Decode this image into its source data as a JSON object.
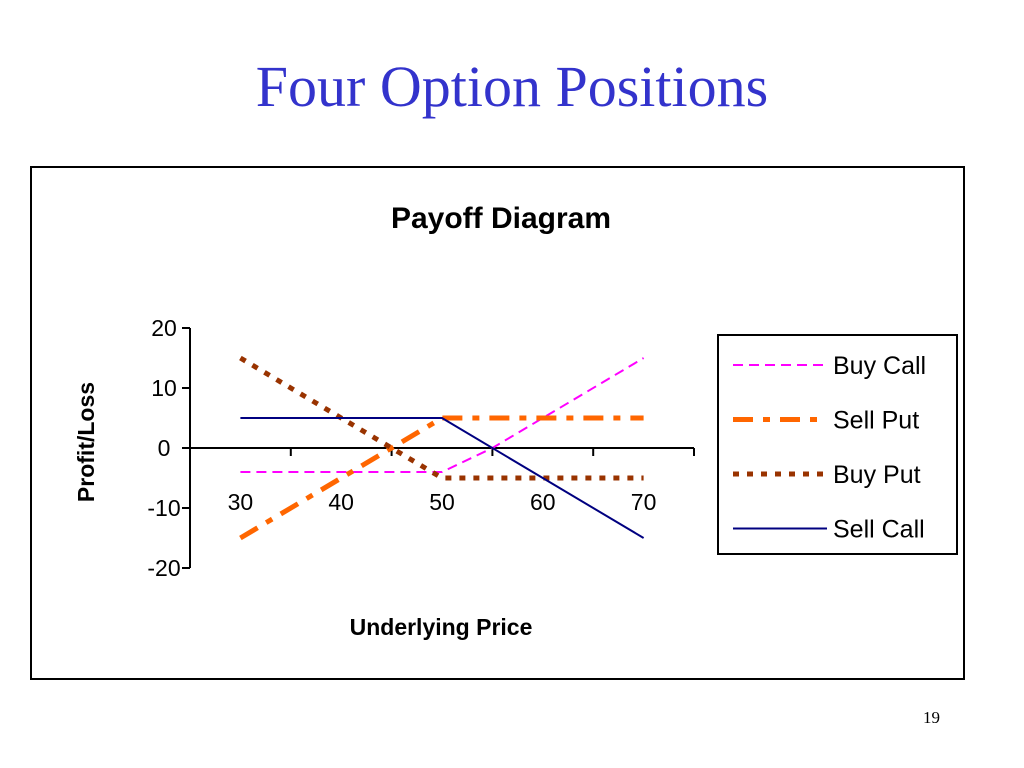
{
  "slide": {
    "title": "Four Option Positions",
    "page_number": "19"
  },
  "chart_data": {
    "type": "line",
    "title": "Payoff Diagram",
    "xlabel": "Underlying Price",
    "ylabel": "Profit/Loss",
    "x_ticks": [
      30,
      40,
      50,
      60,
      70
    ],
    "y_ticks": [
      20,
      10,
      0,
      -10,
      -20
    ],
    "xlim": [
      25,
      75
    ],
    "ylim": [
      -20,
      20
    ],
    "grid": false,
    "legend_position": "right",
    "series": [
      {
        "name": "Buy Call",
        "color": "#ff00ff",
        "dash": "dashed",
        "x": [
          30,
          50,
          55,
          70
        ],
        "y": [
          -4,
          -4,
          0,
          15
        ]
      },
      {
        "name": "Sell Put",
        "color": "#ff6600",
        "dash": "dash-dot",
        "x": [
          30,
          50,
          55,
          70
        ],
        "y": [
          -15,
          5,
          5,
          5
        ]
      },
      {
        "name": "Buy Put",
        "color": "#993300",
        "dash": "dotted",
        "x": [
          30,
          50,
          70
        ],
        "y": [
          15,
          -5,
          -5
        ]
      },
      {
        "name": "Sell Call",
        "color": "#000080",
        "dash": "solid",
        "x": [
          30,
          50,
          70
        ],
        "y": [
          5,
          5,
          -15
        ]
      }
    ]
  }
}
